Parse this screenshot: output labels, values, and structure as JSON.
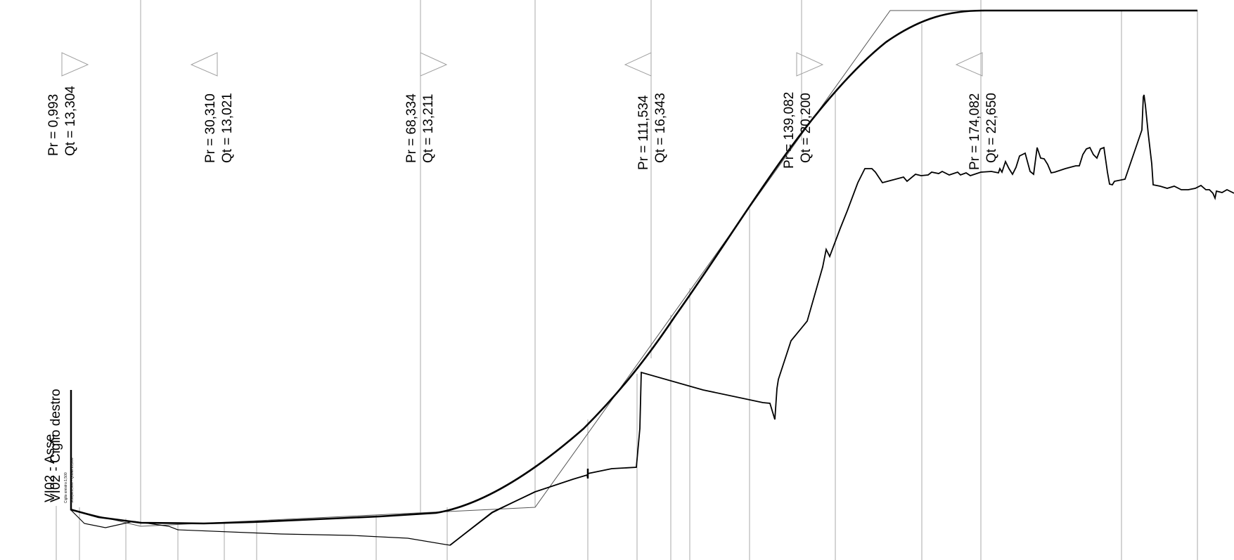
{
  "profile_title": "VI02 - Asse",
  "profile_subtitle": "VI02 - Ciglio destro",
  "small_caption_1": "Ciglio sinistro:1,500",
  "small_caption_2": "Scarpa:2,000 - Quota:13,260",
  "vertices": [
    {
      "pr": "Pr = 0,993",
      "qt": "Qt = 13,304"
    },
    {
      "pr": "Pr = 30,310",
      "qt": "Qt = 13,021"
    },
    {
      "pr": "Pr = 68,334",
      "qt": "Qt = 13,211"
    },
    {
      "pr": "Pr = 111,534",
      "qt": "Qt = 16,343"
    },
    {
      "pr": "Pr = 139,082",
      "qt": "Qt = 20,200"
    },
    {
      "pr": "Pr = 174,082",
      "qt": "Qt = 22,650"
    }
  ],
  "colors": {
    "profile_line": "#000000",
    "station_line": "#a8a8a8",
    "vertex_marker": "#a0a0a0"
  }
}
